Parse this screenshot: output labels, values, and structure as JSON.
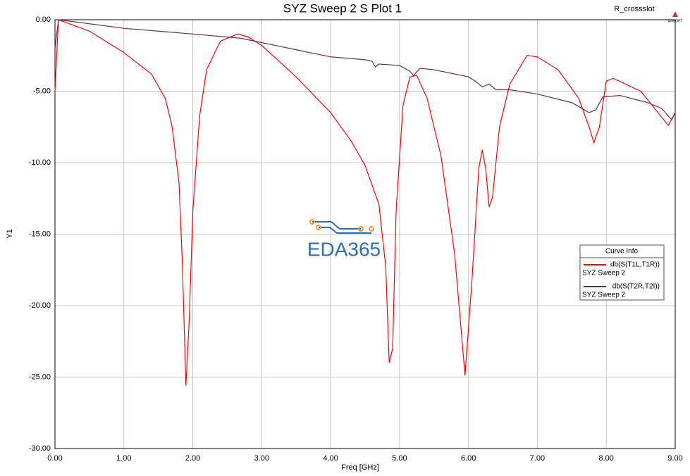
{
  "chart_data": {
    "type": "line",
    "title": "SYZ Sweep 2 S Plot 1",
    "design": "R_crossslot",
    "logo": "ANSOFT",
    "watermark": "EDA365",
    "xlabel": "Freq [GHz]",
    "ylabel": "Y1",
    "grid": true,
    "legend_title": "Curve Info",
    "legend_position": "right",
    "xlim": [
      0,
      9
    ],
    "ylim": [
      -30,
      0
    ],
    "xticks": [
      {
        "value": 0,
        "label": "0.00"
      },
      {
        "value": 1,
        "label": "1.00"
      },
      {
        "value": 2,
        "label": "2.00"
      },
      {
        "value": 3,
        "label": "3.00"
      },
      {
        "value": 4,
        "label": "4.00"
      },
      {
        "value": 5,
        "label": "5.00"
      },
      {
        "value": 6,
        "label": "6.00"
      },
      {
        "value": 7,
        "label": "7.00"
      },
      {
        "value": 8,
        "label": "8.00"
      },
      {
        "value": 9,
        "label": "9.00"
      }
    ],
    "yticks": [
      {
        "value": 0,
        "label": "0.00"
      },
      {
        "value": -5,
        "label": "-5.00"
      },
      {
        "value": -10,
        "label": "-10.00"
      },
      {
        "value": -15,
        "label": "-15.00"
      },
      {
        "value": -20,
        "label": "-20.00"
      },
      {
        "value": -25,
        "label": "-25.00"
      },
      {
        "value": -30,
        "label": "-30.00"
      }
    ],
    "series": [
      {
        "name": "db(S(T1L,T1R))",
        "sweep": "SYZ Sweep 2",
        "color": "#ff0000",
        "x": [
          0,
          0.05,
          0.5,
          1.0,
          1.4,
          1.6,
          1.7,
          1.8,
          1.85,
          1.9,
          1.95,
          2.0,
          2.1,
          2.2,
          2.4,
          2.65,
          2.8,
          3.0,
          3.5,
          4.0,
          4.3,
          4.5,
          4.7,
          4.8,
          4.85,
          4.9,
          4.95,
          5.05,
          5.15,
          5.25,
          5.4,
          5.6,
          5.8,
          5.95,
          6.05,
          6.15,
          6.2,
          6.25,
          6.3,
          6.35,
          6.45,
          6.6,
          6.85,
          7.0,
          7.3,
          7.6,
          7.75,
          7.82,
          7.9,
          8.0,
          8.1,
          8.5,
          8.9,
          9.0
        ],
        "values": [
          -5.0,
          0,
          -0.8,
          -2.3,
          -3.8,
          -5.5,
          -7.5,
          -11.4,
          -17.3,
          -25.6,
          -20.8,
          -13.4,
          -6.7,
          -3.5,
          -1.5,
          -1.0,
          -1.2,
          -1.8,
          -4.0,
          -6.5,
          -8.5,
          -10.2,
          -12.9,
          -17.3,
          -24.0,
          -23.0,
          -13.4,
          -6.0,
          -4.0,
          -3.9,
          -5.5,
          -9.5,
          -16.4,
          -24.9,
          -18.3,
          -10.4,
          -9.1,
          -10.4,
          -13.1,
          -12.4,
          -7.5,
          -4.5,
          -2.5,
          -2.6,
          -3.5,
          -5.5,
          -7.5,
          -8.6,
          -7.5,
          -4.3,
          -4.1,
          -5.0,
          -7.4,
          -6.5
        ]
      },
      {
        "name": "db(S(T2R,T2I))",
        "sweep": "SYZ Sweep 2",
        "color": "#6b2a5e",
        "x": [
          0,
          0.05,
          1.0,
          2.0,
          2.7,
          3.0,
          3.5,
          4.0,
          4.5,
          4.6,
          4.65,
          4.7,
          5.0,
          5.15,
          5.2,
          5.3,
          5.5,
          6.0,
          6.1,
          6.2,
          6.3,
          6.4,
          6.6,
          7.0,
          7.5,
          7.75,
          7.85,
          7.95,
          8.2,
          8.6,
          8.8,
          8.95,
          9.0
        ],
        "values": [
          -2.0,
          0,
          -0.6,
          -1.0,
          -1.3,
          -1.6,
          -2.1,
          -2.6,
          -2.8,
          -2.9,
          -3.3,
          -3.1,
          -3.2,
          -3.6,
          -3.9,
          -3.4,
          -3.5,
          -4.0,
          -4.3,
          -4.7,
          -4.5,
          -4.9,
          -4.9,
          -5.2,
          -5.8,
          -6.5,
          -6.3,
          -5.4,
          -5.3,
          -5.8,
          -6.2,
          -7.0,
          -6.5
        ]
      }
    ]
  }
}
